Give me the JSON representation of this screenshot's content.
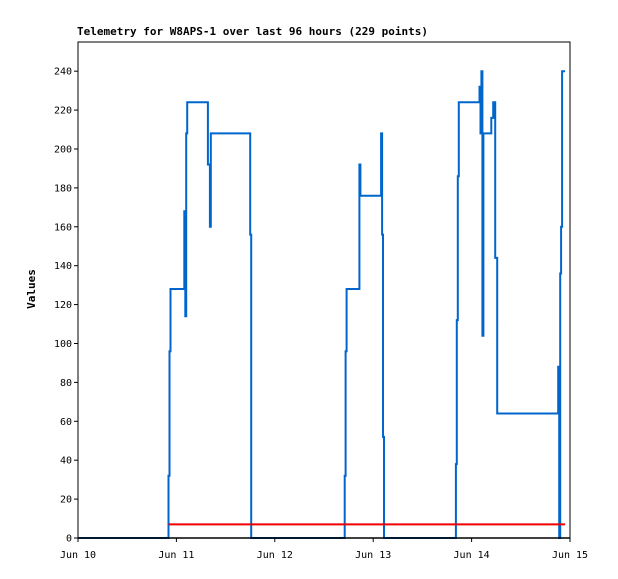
{
  "chart_data": {
    "type": "line",
    "title": "Telemetry for W8APS-1 over last 96 hours (229 points)",
    "xlabel": "",
    "ylabel": "Values",
    "x_ticks": [
      "Jun 10",
      "Jun 11",
      "Jun 12",
      "Jun 13",
      "Jun 14",
      "Jun 15"
    ],
    "xlim": [
      0,
      5
    ],
    "ylim": [
      0,
      255
    ],
    "y_ticks": [
      0,
      20,
      40,
      60,
      80,
      100,
      120,
      140,
      160,
      180,
      200,
      220,
      240
    ],
    "grid": false,
    "legend": "none",
    "series": [
      {
        "color": "#0066cc",
        "points": [
          [
            0.0,
            0
          ],
          [
            0.92,
            0
          ],
          [
            0.92,
            32
          ],
          [
            0.93,
            32
          ],
          [
            0.93,
            96
          ],
          [
            0.94,
            96
          ],
          [
            0.94,
            128
          ],
          [
            1.08,
            128
          ],
          [
            1.08,
            168
          ],
          [
            1.09,
            168
          ],
          [
            1.09,
            114
          ],
          [
            1.1,
            114
          ],
          [
            1.1,
            208
          ],
          [
            1.11,
            208
          ],
          [
            1.11,
            224
          ],
          [
            1.32,
            224
          ],
          [
            1.32,
            192
          ],
          [
            1.34,
            192
          ],
          [
            1.34,
            160
          ],
          [
            1.35,
            160
          ],
          [
            1.35,
            208
          ],
          [
            1.75,
            208
          ],
          [
            1.75,
            156
          ],
          [
            1.76,
            156
          ],
          [
            1.76,
            0
          ],
          [
            2.71,
            0
          ],
          [
            2.71,
            32
          ],
          [
            2.72,
            32
          ],
          [
            2.72,
            96
          ],
          [
            2.73,
            96
          ],
          [
            2.73,
            128
          ],
          [
            2.86,
            128
          ],
          [
            2.86,
            192
          ],
          [
            2.87,
            192
          ],
          [
            2.87,
            176
          ],
          [
            3.08,
            176
          ],
          [
            3.08,
            208
          ],
          [
            3.09,
            208
          ],
          [
            3.09,
            156
          ],
          [
            3.1,
            156
          ],
          [
            3.1,
            52
          ],
          [
            3.11,
            52
          ],
          [
            3.11,
            0
          ],
          [
            3.84,
            0
          ],
          [
            3.84,
            38
          ],
          [
            3.85,
            38
          ],
          [
            3.85,
            112
          ],
          [
            3.86,
            112
          ],
          [
            3.86,
            186
          ],
          [
            3.87,
            186
          ],
          [
            3.87,
            224
          ],
          [
            4.08,
            224
          ],
          [
            4.08,
            232
          ],
          [
            4.09,
            232
          ],
          [
            4.09,
            208
          ],
          [
            4.1,
            208
          ],
          [
            4.1,
            240
          ],
          [
            4.11,
            240
          ],
          [
            4.11,
            104
          ],
          [
            4.12,
            104
          ],
          [
            4.12,
            208
          ],
          [
            4.2,
            208
          ],
          [
            4.2,
            216
          ],
          [
            4.22,
            216
          ],
          [
            4.22,
            224
          ],
          [
            4.24,
            224
          ],
          [
            4.24,
            144
          ],
          [
            4.26,
            144
          ],
          [
            4.26,
            64
          ],
          [
            4.88,
            64
          ],
          [
            4.88,
            88
          ],
          [
            4.89,
            88
          ],
          [
            4.89,
            0
          ],
          [
            4.9,
            0
          ],
          [
            4.9,
            136
          ],
          [
            4.91,
            136
          ],
          [
            4.91,
            160
          ],
          [
            4.92,
            160
          ],
          [
            4.92,
            240
          ],
          [
            4.95,
            240
          ]
        ]
      },
      {
        "color": "#ee0000",
        "points": [
          [
            0.92,
            7
          ],
          [
            4.95,
            7
          ]
        ]
      },
      {
        "color": "#000000",
        "points": [
          [
            0.0,
            0
          ],
          [
            5.0,
            0
          ]
        ]
      }
    ]
  }
}
